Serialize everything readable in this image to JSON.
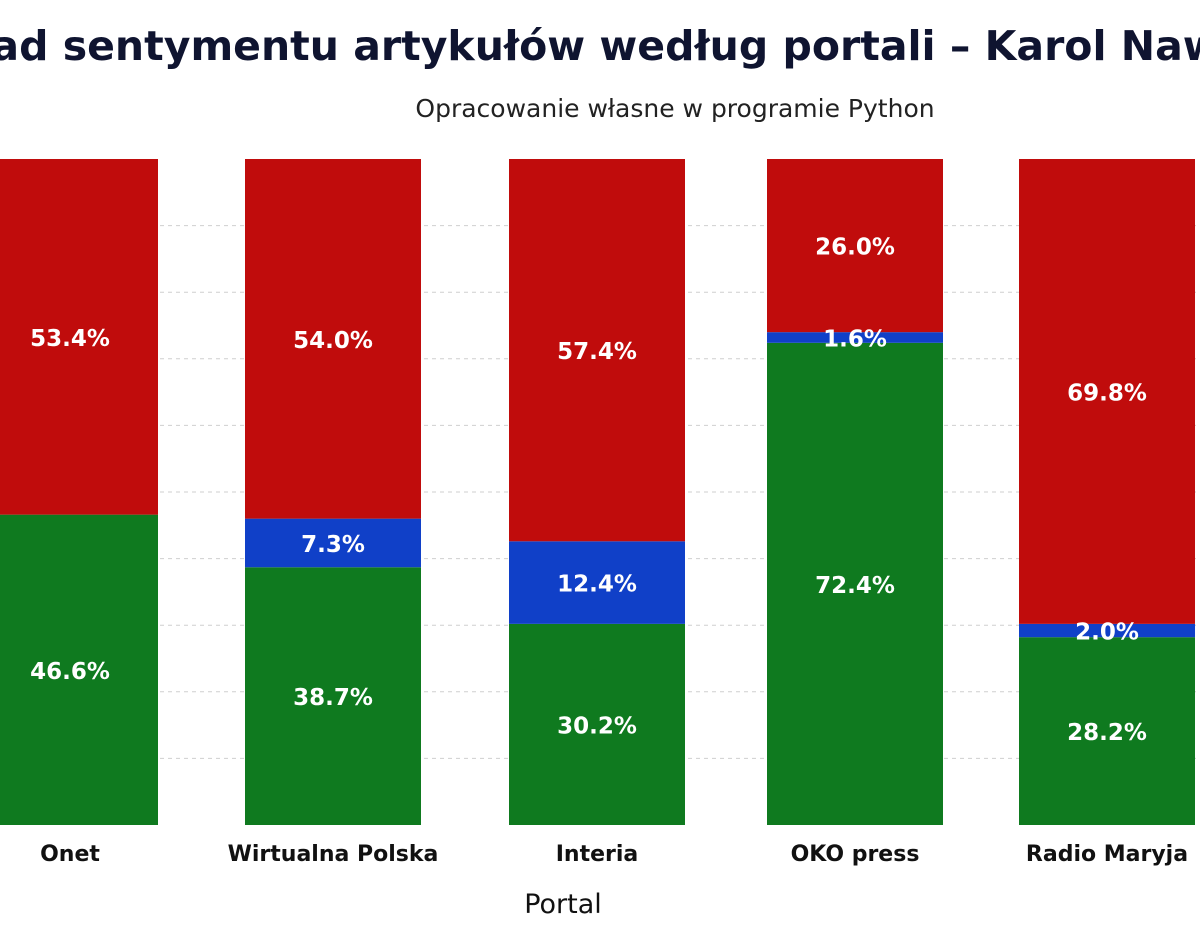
{
  "colors": {
    "positive": "#0f7a1f",
    "neutral": "#1040c8",
    "negative": "#c00c0c",
    "grid": "#cfcfcf",
    "title": "#0f1430"
  },
  "chart_data": {
    "type": "bar",
    "stacked": true,
    "title": "Rozkład sentymentu artykułów według portali – Karol Nawrocki",
    "subtitle": "Opracowanie własne w programie Python",
    "xlabel": "Portal",
    "ylabel": "",
    "ylim": [
      0,
      100
    ],
    "grid": true,
    "legend": "none",
    "categories": [
      "Onet",
      "Wirtualna Polska",
      "Interia",
      "OKO press",
      "Radio Maryja"
    ],
    "series": [
      {
        "key": "positive",
        "values": [
          46.6,
          38.7,
          30.2,
          72.4,
          28.2
        ],
        "labels": [
          "46.6%",
          "38.7%",
          "30.2%",
          "72.4%",
          "28.2%"
        ]
      },
      {
        "key": "neutral",
        "values": [
          0,
          7.3,
          12.4,
          1.6,
          2.0
        ],
        "labels": [
          "",
          "7.3%",
          "12.4%",
          "1.6%",
          "2.0%"
        ]
      },
      {
        "key": "negative",
        "values": [
          53.4,
          54.0,
          57.4,
          26.0,
          69.8
        ],
        "labels": [
          "53.4%",
          "54.0%",
          "57.4%",
          "26.0%",
          "69.8%"
        ]
      }
    ]
  }
}
